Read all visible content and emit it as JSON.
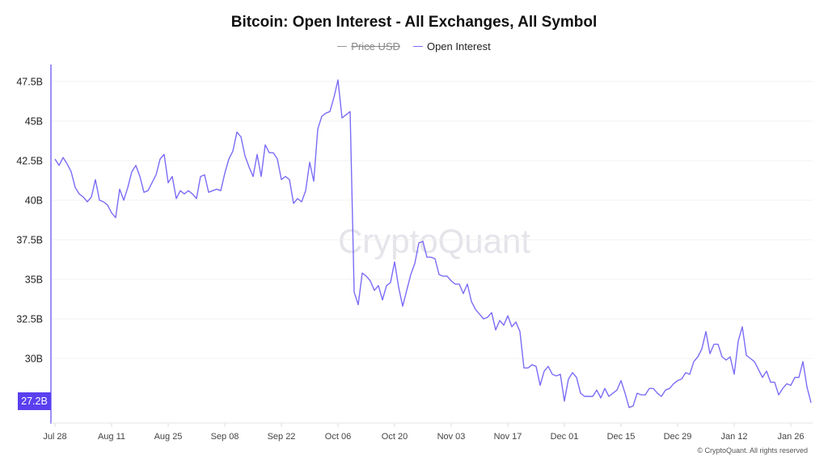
{
  "chart_data": {
    "type": "line",
    "title": "Bitcoin: Open Interest - All Exchanges, All Symbol",
    "legend": [
      {
        "name": "Price USD",
        "color": "#9a9a9a",
        "hidden": true
      },
      {
        "name": "Open Interest",
        "color": "#7b6cf6",
        "hidden": false
      }
    ],
    "legend_placement": "top-center",
    "ylim": [
      26.5,
      48.5
    ],
    "y_ticks": [
      30,
      32.5,
      35,
      37.5,
      40,
      42.5,
      45,
      47.5
    ],
    "y_tick_labels": [
      "30B",
      "32.5B",
      "35B",
      "37.5B",
      "40B",
      "42.5B",
      "45B",
      "47.5B"
    ],
    "x_tick_labels": [
      "Jul 28",
      "Aug 11",
      "Aug 25",
      "Sep 08",
      "Sep 22",
      "Oct 06",
      "Oct 20",
      "Nov 03",
      "Nov 17",
      "Dec 01",
      "Dec 15",
      "Dec 29",
      "Jan 12",
      "Jan 26"
    ],
    "grid": true,
    "last_value_label": "27.2B",
    "watermark": "CryptoQuant",
    "series": [
      {
        "name": "Open Interest",
        "unit": "B",
        "dates": [
          "Jul 28",
          "Jul 29",
          "Jul 30",
          "Jul 31",
          "Aug 01",
          "Aug 02",
          "Aug 03",
          "Aug 04",
          "Aug 05",
          "Aug 06",
          "Aug 07",
          "Aug 08",
          "Aug 09",
          "Aug 10",
          "Aug 11",
          "Aug 12",
          "Aug 13",
          "Aug 14",
          "Aug 15",
          "Aug 16",
          "Aug 17",
          "Aug 18",
          "Aug 19",
          "Aug 20",
          "Aug 21",
          "Aug 22",
          "Aug 23",
          "Aug 24",
          "Aug 25",
          "Aug 26",
          "Aug 27",
          "Aug 28",
          "Aug 29",
          "Aug 30",
          "Aug 31",
          "Sep 01",
          "Sep 02",
          "Sep 03",
          "Sep 04",
          "Sep 05",
          "Sep 06",
          "Sep 07",
          "Sep 08",
          "Sep 09",
          "Sep 10",
          "Sep 11",
          "Sep 12",
          "Sep 13",
          "Sep 14",
          "Sep 15",
          "Sep 16",
          "Sep 17",
          "Sep 18",
          "Sep 19",
          "Sep 20",
          "Sep 21",
          "Sep 22",
          "Sep 23",
          "Sep 24",
          "Sep 25",
          "Sep 26",
          "Sep 27",
          "Sep 28",
          "Sep 29",
          "Sep 30",
          "Oct 01",
          "Oct 02",
          "Oct 03",
          "Oct 04",
          "Oct 05",
          "Oct 06",
          "Oct 07",
          "Oct 08",
          "Oct 09",
          "Oct 10",
          "Oct 11",
          "Oct 12",
          "Oct 13",
          "Oct 14",
          "Oct 15",
          "Oct 16",
          "Oct 17",
          "Oct 18",
          "Oct 19",
          "Oct 20",
          "Oct 21",
          "Oct 22",
          "Oct 23",
          "Oct 24",
          "Oct 25",
          "Oct 26",
          "Oct 27",
          "Oct 28",
          "Oct 29",
          "Oct 30",
          "Oct 31",
          "Nov 01",
          "Nov 02",
          "Nov 03",
          "Nov 04",
          "Nov 05",
          "Nov 06",
          "Nov 07",
          "Nov 08",
          "Nov 09",
          "Nov 10",
          "Nov 11",
          "Nov 12",
          "Nov 13",
          "Nov 14",
          "Nov 15",
          "Nov 16",
          "Nov 17",
          "Nov 18",
          "Nov 19",
          "Nov 20",
          "Nov 21",
          "Nov 22",
          "Nov 23",
          "Nov 24",
          "Nov 25",
          "Nov 26",
          "Nov 27",
          "Nov 28",
          "Nov 29",
          "Nov 30",
          "Dec 01",
          "Dec 02",
          "Dec 03",
          "Dec 04",
          "Dec 05",
          "Dec 06",
          "Dec 07",
          "Dec 08",
          "Dec 09",
          "Dec 10",
          "Dec 11",
          "Dec 12",
          "Dec 13",
          "Dec 14",
          "Dec 15",
          "Dec 16",
          "Dec 17",
          "Dec 18",
          "Dec 19",
          "Dec 20",
          "Dec 21",
          "Dec 22",
          "Dec 23",
          "Dec 24",
          "Dec 25",
          "Dec 26",
          "Dec 27",
          "Dec 28",
          "Dec 29",
          "Dec 30",
          "Dec 31",
          "Jan 01",
          "Jan 02",
          "Jan 03",
          "Jan 04",
          "Jan 05",
          "Jan 06",
          "Jan 07",
          "Jan 08",
          "Jan 09",
          "Jan 10",
          "Jan 11",
          "Jan 12",
          "Jan 13",
          "Jan 14",
          "Jan 15",
          "Jan 16",
          "Jan 17",
          "Jan 18",
          "Jan 19",
          "Jan 20",
          "Jan 21",
          "Jan 22",
          "Jan 23",
          "Jan 24",
          "Jan 25",
          "Jan 26",
          "Jan 27",
          "Jan 28",
          "Jan 29",
          "Jan 30",
          "Jan 31"
        ],
        "values": [
          42.6,
          42.2,
          42.7,
          42.3,
          41.8,
          40.8,
          40.4,
          40.2,
          39.9,
          40.2,
          41.3,
          40.0,
          39.9,
          39.7,
          39.2,
          38.9,
          40.7,
          40.0,
          40.8,
          41.8,
          42.2,
          41.5,
          40.5,
          40.6,
          41.1,
          41.6,
          42.6,
          42.9,
          41.1,
          41.5,
          40.1,
          40.6,
          40.4,
          40.6,
          40.4,
          40.1,
          41.5,
          41.6,
          40.5,
          40.6,
          40.7,
          40.6,
          41.7,
          42.6,
          43.1,
          44.3,
          44.0,
          42.8,
          42.1,
          41.5,
          42.9,
          41.5,
          43.5,
          43.0,
          43.0,
          42.6,
          41.3,
          41.5,
          41.3,
          39.8,
          40.1,
          39.9,
          40.6,
          42.4,
          41.2,
          44.5,
          45.3,
          45.5,
          45.6,
          46.5,
          47.6,
          45.2,
          45.4,
          45.6,
          34.2,
          33.4,
          35.4,
          35.2,
          34.9,
          34.3,
          34.6,
          33.7,
          34.6,
          34.8,
          36.1,
          34.5,
          33.3,
          34.3,
          35.3,
          36.0,
          37.3,
          37.4,
          36.4,
          36.4,
          36.3,
          35.3,
          35.2,
          35.2,
          34.9,
          34.7,
          34.7,
          34.1,
          34.7,
          33.6,
          33.1,
          32.8,
          32.5,
          32.6,
          32.9,
          31.8,
          32.4,
          32.1,
          32.7,
          32.0,
          32.3,
          31.7,
          29.4,
          29.4,
          29.6,
          29.5,
          28.3,
          29.2,
          29.5,
          29.0,
          28.9,
          29.0,
          27.3,
          28.7,
          29.1,
          28.8,
          27.8,
          27.6,
          27.6,
          27.6,
          28.0,
          27.5,
          28.1,
          27.6,
          27.8,
          28.0,
          28.6,
          27.8,
          26.9,
          27.0,
          27.8,
          27.7,
          27.7,
          28.1,
          28.1,
          27.8,
          27.6,
          28.0,
          28.1,
          28.4,
          28.6,
          28.7,
          29.1,
          29.0,
          29.8,
          30.1,
          30.6,
          31.7,
          30.3,
          30.9,
          30.9,
          30.1,
          29.9,
          30.1,
          29.0,
          31.1,
          32.0,
          30.2,
          30.0,
          29.8,
          29.3,
          28.8,
          29.2,
          28.5,
          28.5,
          27.7,
          28.1,
          28.4,
          28.3,
          28.8,
          28.8,
          29.8,
          28.2,
          27.2
        ]
      }
    ]
  },
  "footer": {
    "copyright": "© CryptoQuant. All rights reserved"
  }
}
